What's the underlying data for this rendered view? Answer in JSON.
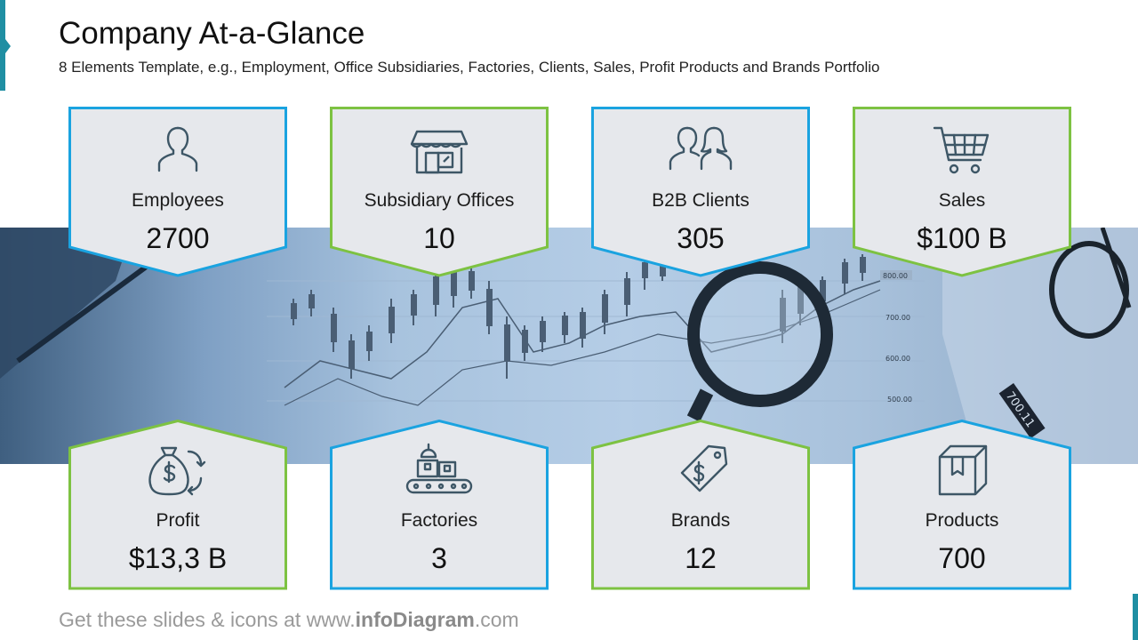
{
  "header": {
    "title": "Company At-a-Glance",
    "subtitle": "8 Elements Template, e.g., Employment, Office Subsidiaries, Factories, Clients, Sales, Profit Products and Brands Portfolio"
  },
  "colors": {
    "accent_teal": "#1f8fa3",
    "border_blue": "#1aa3e0",
    "border_green": "#7dc242",
    "card_fill": "#e6e8ec",
    "icon_color": "#3d5666"
  },
  "top_cards": [
    {
      "icon": "person-icon",
      "label": "Employees",
      "value": "2700"
    },
    {
      "icon": "store-icon",
      "label": "Subsidiary Offices",
      "value": "10"
    },
    {
      "icon": "people-icon",
      "label": "B2B Clients",
      "value": "305"
    },
    {
      "icon": "shopping-cart-icon",
      "label": "Sales",
      "value": "$100 B"
    }
  ],
  "bottom_cards": [
    {
      "icon": "money-bag-icon",
      "label": "Profit",
      "value": "$13,3 B"
    },
    {
      "icon": "factory-conveyor-icon",
      "label": "Factories",
      "value": "3"
    },
    {
      "icon": "price-tag-icon",
      "label": "Brands",
      "value": "12"
    },
    {
      "icon": "box-icon",
      "label": "Products",
      "value": "700"
    }
  ],
  "footer": {
    "prefix": "Get these slides & icons at www.",
    "brand": "infoDiagram",
    "suffix": ".com"
  }
}
